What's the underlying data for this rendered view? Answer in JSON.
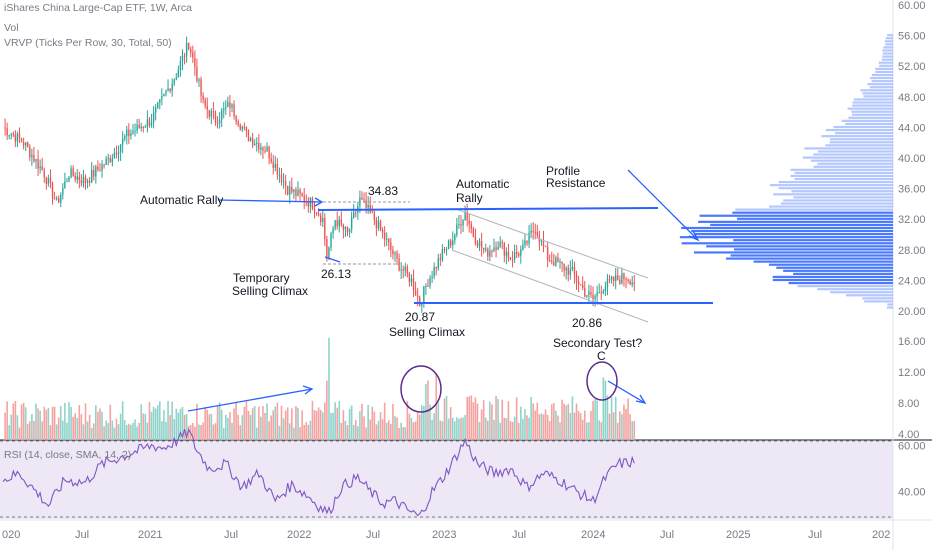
{
  "header": {
    "title": "iShares China Large-Cap ETF, 1W, Arca",
    "vol": "Vol",
    "vrvp": "VRVP (Ticks Per Row, 30, Total, 50)"
  },
  "rsi_label": "RSI (14, close, SMA, 14, 2)",
  "colors": {
    "up": "#26a69a",
    "down": "#ef5350",
    "annotation": "#2962ff",
    "profile": "#2962ff",
    "rsi_line": "#7e57c2",
    "rsi_band": "#ede7f6",
    "channel": "#b2b5be",
    "circle": "#5b2c8f"
  },
  "chart_data": {
    "type": "candlestick",
    "x_ticks": [
      "020",
      "Jul",
      "2021",
      "Jul",
      "2022",
      "Jul",
      "2023",
      "Jul",
      "2024",
      "Jul",
      "2025",
      "Jul",
      "202"
    ],
    "price_ticks": [
      60,
      56,
      52,
      48,
      44,
      40,
      36,
      32,
      28,
      24,
      20,
      16,
      12,
      8,
      4
    ],
    "price_tick_labels": [
      "60.00",
      "56.00",
      "52.00",
      "48.00",
      "44.00",
      "40.00",
      "36.00",
      "32.00",
      "28.00",
      "24.00",
      "20.00",
      "16.00",
      "12.00",
      "8.00",
      "4.00"
    ],
    "rsi_ticks": [
      60,
      40
    ],
    "rsi_tick_labels": [
      "60.00",
      "40.00"
    ],
    "price_anchors": [
      [
        0,
        44
      ],
      [
        10,
        42
      ],
      [
        20,
        38
      ],
      [
        26,
        34
      ],
      [
        32,
        38
      ],
      [
        40,
        37
      ],
      [
        52,
        40
      ],
      [
        60,
        43
      ],
      [
        72,
        45
      ],
      [
        80,
        49
      ],
      [
        84,
        51
      ],
      [
        90,
        55
      ],
      [
        93,
        52
      ],
      [
        97,
        47
      ],
      [
        103,
        45
      ],
      [
        110,
        47
      ],
      [
        118,
        43
      ],
      [
        128,
        41
      ],
      [
        138,
        36
      ],
      [
        144,
        35
      ],
      [
        150,
        34
      ],
      [
        155,
        32
      ],
      [
        157,
        27
      ],
      [
        161,
        32
      ],
      [
        167,
        30
      ],
      [
        173,
        34.5
      ],
      [
        180,
        32
      ],
      [
        186,
        29
      ],
      [
        192,
        26
      ],
      [
        198,
        24
      ],
      [
        202,
        21
      ],
      [
        206,
        24
      ],
      [
        212,
        27
      ],
      [
        218,
        29.5
      ],
      [
        224,
        33
      ],
      [
        228,
        30
      ],
      [
        234,
        27.5
      ],
      [
        240,
        29
      ],
      [
        246,
        27
      ],
      [
        252,
        28
      ],
      [
        258,
        31
      ],
      [
        264,
        27
      ],
      [
        270,
        26
      ],
      [
        276,
        25
      ],
      [
        282,
        22.5
      ],
      [
        286,
        21.5
      ],
      [
        290,
        23
      ],
      [
        296,
        24
      ],
      [
        302,
        24.5
      ],
      [
        306,
        23.8
      ]
    ],
    "rsi_anchors": [
      [
        0,
        45
      ],
      [
        8,
        48
      ],
      [
        16,
        40
      ],
      [
        22,
        34
      ],
      [
        30,
        45
      ],
      [
        40,
        44
      ],
      [
        48,
        52
      ],
      [
        60,
        56
      ],
      [
        72,
        60
      ],
      [
        78,
        59
      ],
      [
        84,
        62
      ],
      [
        90,
        66
      ],
      [
        94,
        58
      ],
      [
        100,
        50
      ],
      [
        108,
        52
      ],
      [
        116,
        42
      ],
      [
        124,
        48
      ],
      [
        132,
        36
      ],
      [
        140,
        43
      ],
      [
        148,
        38
      ],
      [
        154,
        33
      ],
      [
        158,
        31
      ],
      [
        164,
        42
      ],
      [
        172,
        46
      ],
      [
        178,
        40
      ],
      [
        184,
        35
      ],
      [
        190,
        36
      ],
      [
        196,
        32
      ],
      [
        202,
        29
      ],
      [
        208,
        40
      ],
      [
        214,
        47
      ],
      [
        220,
        56
      ],
      [
        224,
        62
      ],
      [
        230,
        52
      ],
      [
        238,
        48
      ],
      [
        246,
        50
      ],
      [
        254,
        42
      ],
      [
        262,
        48
      ],
      [
        270,
        45
      ],
      [
        278,
        40
      ],
      [
        286,
        36
      ],
      [
        292,
        46
      ],
      [
        298,
        52
      ],
      [
        306,
        53
      ]
    ],
    "volume_spikes": [
      {
        "week": 158,
        "value": 15.5
      },
      {
        "week": 157,
        "value": 9
      },
      {
        "week": 205,
        "value": 8.5
      },
      {
        "week": 206,
        "value": 9
      },
      {
        "week": 210,
        "value": 10
      },
      {
        "week": 291,
        "value": 9.5
      },
      {
        "week": 292,
        "value": 9
      }
    ],
    "volume_profile_note": "peak volume near 26-32",
    "volume_profile_anchors": [
      [
        56,
        0.03
      ],
      [
        53,
        0.06
      ],
      [
        50,
        0.12
      ],
      [
        47,
        0.2
      ],
      [
        44,
        0.3
      ],
      [
        41,
        0.42
      ],
      [
        38,
        0.5
      ],
      [
        36,
        0.58
      ],
      [
        34,
        0.62
      ],
      [
        32.5,
        0.9
      ],
      [
        31.5,
        0.95
      ],
      [
        30,
        1.0
      ],
      [
        28.5,
        0.98
      ],
      [
        27.5,
        0.92
      ],
      [
        26,
        0.75
      ],
      [
        25,
        0.55
      ],
      [
        24,
        0.72
      ],
      [
        23,
        0.4
      ],
      [
        22,
        0.22
      ],
      [
        21,
        0.12
      ]
    ]
  },
  "annotations": {
    "automatic_rally_left": "Automatic Rally",
    "price_high": "34.83",
    "temporary": "Temporary",
    "selling_climax_1": "Selling Climax",
    "price_low1": "26.13",
    "automatic_rally_right_1": "Automatic",
    "automatic_rally_right_2": "Rally",
    "profile": "Profile",
    "resistance": "Resistance",
    "price_low2": "20.87",
    "selling_climax_2": "Selling Climax",
    "price_low3": "20.86",
    "secondary_test": "Secondary Test?",
    "c_label": "C"
  }
}
